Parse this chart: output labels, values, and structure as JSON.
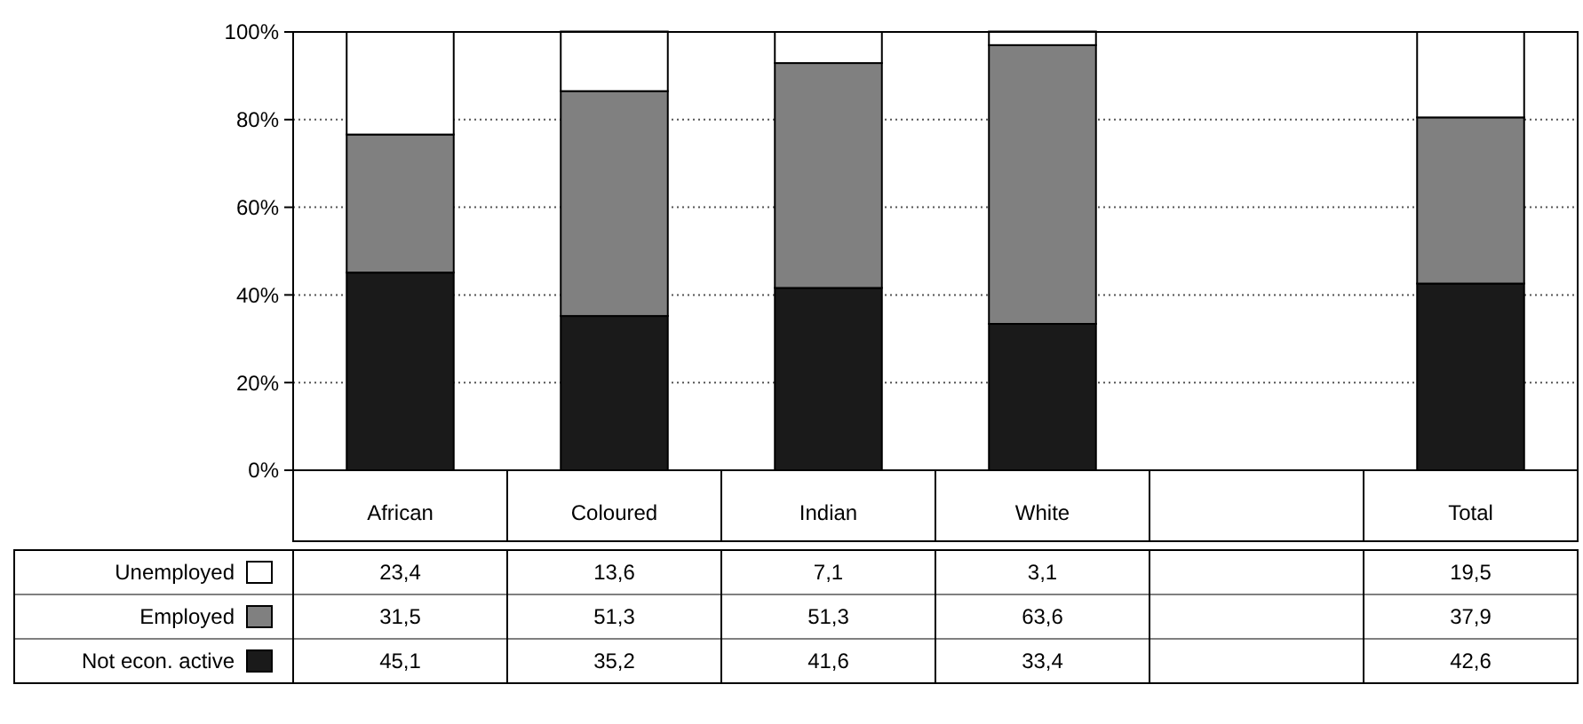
{
  "chart_data": {
    "type": "bar",
    "stacked": true,
    "categories": [
      "African",
      "Coloured",
      "Indian",
      "White",
      null,
      "Total"
    ],
    "series": [
      {
        "name": "Not econ. active",
        "color": "#1a1a1a",
        "values": [
          45.1,
          35.2,
          41.6,
          33.4,
          null,
          42.6
        ],
        "value_labels": [
          "45,1",
          "35,2",
          "41,6",
          "33,4",
          null,
          "42,6"
        ]
      },
      {
        "name": "Employed",
        "color": "#808080",
        "values": [
          31.5,
          51.3,
          51.3,
          63.6,
          null,
          37.9
        ],
        "value_labels": [
          "31,5",
          "51,3",
          "51,3",
          "63,6",
          null,
          "37,9"
        ]
      },
      {
        "name": "Unemployed",
        "color": "#ffffff",
        "values": [
          23.4,
          13.6,
          7.1,
          3.1,
          null,
          19.5
        ],
        "value_labels": [
          "23,4",
          "13,6",
          "7,1",
          "3,1",
          null,
          "19,5"
        ]
      }
    ],
    "ylim": [
      0,
      100
    ],
    "yticks": [
      {
        "value": 0,
        "label": "0%"
      },
      {
        "value": 20,
        "label": "20%"
      },
      {
        "value": 40,
        "label": "40%"
      },
      {
        "value": 60,
        "label": "60%"
      },
      {
        "value": 80,
        "label": "80%"
      },
      {
        "value": 100,
        "label": "100%"
      }
    ],
    "grid": "y",
    "legend": "bottom left"
  }
}
